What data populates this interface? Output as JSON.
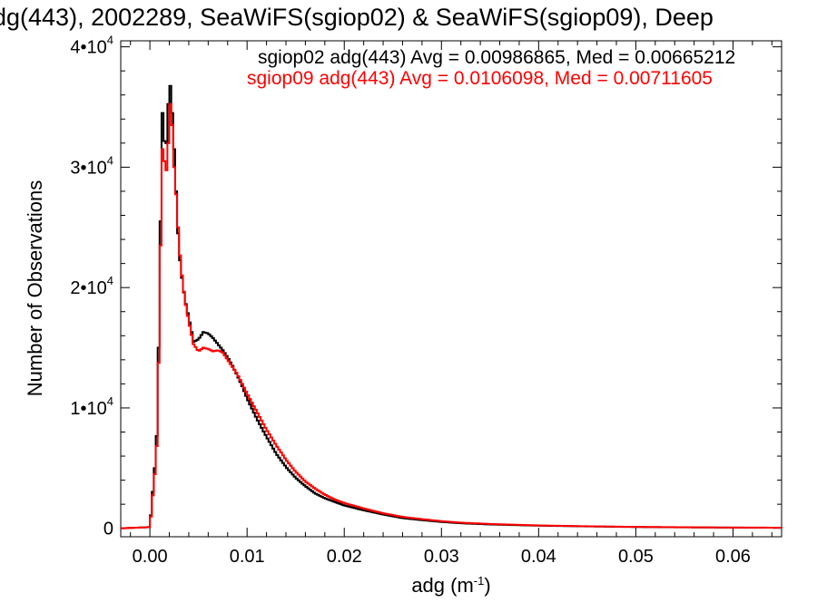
{
  "chart_data": {
    "type": "line",
    "title": "dg(443), 2002289, SeaWiFS(sgiop02) & SeaWiFS(sgiop09), Deep",
    "xlabel": "adg (m",
    "xlabel_sup": "-1",
    "xlabel_end": ")",
    "ylabel": "Number of Observations",
    "xlim": [
      -0.003,
      0.065
    ],
    "ylim": [
      -700,
      40500
    ],
    "x_ticks": [
      {
        "value": 0.0,
        "label": "0.00"
      },
      {
        "value": 0.01,
        "label": "0.01"
      },
      {
        "value": 0.02,
        "label": "0.02"
      },
      {
        "value": 0.03,
        "label": "0.03"
      },
      {
        "value": 0.04,
        "label": "0.04"
      },
      {
        "value": 0.05,
        "label": "0.05"
      },
      {
        "value": 0.06,
        "label": "0.06"
      }
    ],
    "y_ticks": [
      {
        "value": 0,
        "label": "0",
        "sup": ""
      },
      {
        "value": 10000,
        "label": "1•10",
        "sup": "4"
      },
      {
        "value": 20000,
        "label": "2•10",
        "sup": "4"
      },
      {
        "value": 30000,
        "label": "3•10",
        "sup": "4"
      },
      {
        "value": 40000,
        "label": "4•10",
        "sup": "4"
      }
    ],
    "legend": [
      {
        "text": "sgiop02 adg(443) Avg = 0.00986865, Med = 0.00665212",
        "color": "#000000"
      },
      {
        "text": "sgiop09 adg(443) Avg = 0.0106098, Med = 0.00711605",
        "color": "#ff0000"
      }
    ],
    "series": [
      {
        "name": "sgiop02",
        "color": "#000000",
        "x": [
          -0.003,
          0.0,
          0.0005,
          0.0008,
          0.001,
          0.0013,
          0.0016,
          0.0018,
          0.002,
          0.0022,
          0.0024,
          0.0026,
          0.0028,
          0.003,
          0.0033,
          0.0036,
          0.004,
          0.0045,
          0.005,
          0.0055,
          0.006,
          0.0065,
          0.007,
          0.0075,
          0.008,
          0.0085,
          0.009,
          0.0095,
          0.01,
          0.011,
          0.012,
          0.013,
          0.014,
          0.015,
          0.016,
          0.017,
          0.018,
          0.019,
          0.02,
          0.022,
          0.024,
          0.026,
          0.028,
          0.03,
          0.032,
          0.035,
          0.04,
          0.045,
          0.05,
          0.055,
          0.06,
          0.065
        ],
        "y": [
          0,
          100,
          5000,
          9000,
          21000,
          34500,
          31000,
          33000,
          37500,
          36000,
          33000,
          30000,
          26000,
          23000,
          20800,
          19000,
          17500,
          15500,
          15700,
          16300,
          16200,
          15800,
          15300,
          14800,
          14200,
          13500,
          12700,
          11800,
          10800,
          9100,
          7600,
          6200,
          5100,
          4200,
          3500,
          2900,
          2500,
          2200,
          1900,
          1500,
          1150,
          850,
          680,
          530,
          420,
          320,
          220,
          160,
          110,
          80,
          60,
          50
        ]
      },
      {
        "name": "sgiop09",
        "color": "#ff0000",
        "x": [
          -0.003,
          0.0,
          0.0005,
          0.0008,
          0.001,
          0.0013,
          0.0016,
          0.0018,
          0.002,
          0.0022,
          0.0024,
          0.0026,
          0.0028,
          0.003,
          0.0033,
          0.0036,
          0.004,
          0.0045,
          0.005,
          0.0055,
          0.006,
          0.0065,
          0.007,
          0.0075,
          0.008,
          0.0085,
          0.009,
          0.0095,
          0.01,
          0.011,
          0.012,
          0.013,
          0.014,
          0.015,
          0.016,
          0.017,
          0.018,
          0.019,
          0.02,
          0.022,
          0.024,
          0.026,
          0.028,
          0.03,
          0.032,
          0.035,
          0.04,
          0.045,
          0.05,
          0.055,
          0.06,
          0.065
        ],
        "y": [
          0,
          100,
          4500,
          8000,
          19500,
          31500,
          30000,
          29500,
          34500,
          36000,
          31000,
          29000,
          26500,
          23500,
          21000,
          19000,
          17200,
          15300,
          14700,
          15000,
          14900,
          14700,
          14800,
          14600,
          14000,
          13400,
          12800,
          12000,
          11200,
          9700,
          8200,
          6900,
          5700,
          4700,
          3900,
          3300,
          2800,
          2400,
          2100,
          1650,
          1250,
          950,
          760,
          590,
          470,
          360,
          240,
          170,
          120,
          90,
          65,
          55
        ]
      }
    ]
  }
}
